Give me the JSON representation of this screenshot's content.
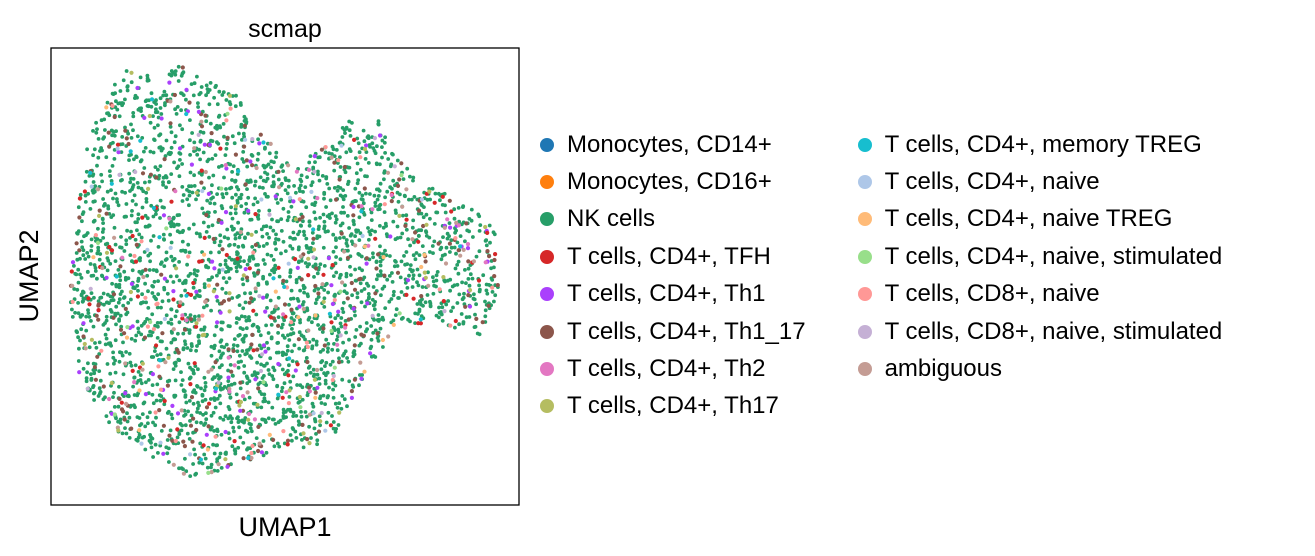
{
  "chart_data": {
    "type": "scatter",
    "title": "scmap",
    "xlabel": "UMAP1",
    "ylabel": "UMAP2",
    "xlim": [
      0,
      1
    ],
    "ylim": [
      0,
      1
    ],
    "xticks": [],
    "yticks": [],
    "grid": false,
    "legend_position": "right",
    "series": [
      {
        "name": "Monocytes, CD14+",
        "color": "#1f77b4",
        "count": 0
      },
      {
        "name": "Monocytes, CD16+",
        "color": "#ff7f0e",
        "count": 0
      },
      {
        "name": "NK cells",
        "color": "#279e68",
        "count": 2700
      },
      {
        "name": "T cells, CD4+, TFH",
        "color": "#d62728",
        "count": 80
      },
      {
        "name": "T cells, CD4+, Th1",
        "color": "#aa40fc",
        "count": 90
      },
      {
        "name": "T cells, CD4+, Th1_17",
        "color": "#8c564b",
        "count": 200
      },
      {
        "name": "T cells, CD4+, Th2",
        "color": "#e377c2",
        "count": 30
      },
      {
        "name": "T cells, CD4+, Th17",
        "color": "#b5bd61",
        "count": 50
      },
      {
        "name": "T cells, CD4+, memory TREG",
        "color": "#17becf",
        "count": 25
      },
      {
        "name": "T cells, CD4+, naive",
        "color": "#aec7e8",
        "count": 20
      },
      {
        "name": "T cells, CD4+, naive TREG",
        "color": "#ffbb78",
        "count": 20
      },
      {
        "name": "T cells, CD4+, naive, stimulated",
        "color": "#98df8a",
        "count": 15
      },
      {
        "name": "T cells, CD8+, naive",
        "color": "#ff9896",
        "count": 40
      },
      {
        "name": "T cells, CD8+, naive, stimulated",
        "color": "#c5b0d5",
        "count": 20
      },
      {
        "name": "ambiguous",
        "color": "#c49c94",
        "count": 60
      }
    ],
    "note_points": "Individual cell coordinates are not labeled; the point cloud is procedurally regenerated within the visible cluster shape."
  }
}
